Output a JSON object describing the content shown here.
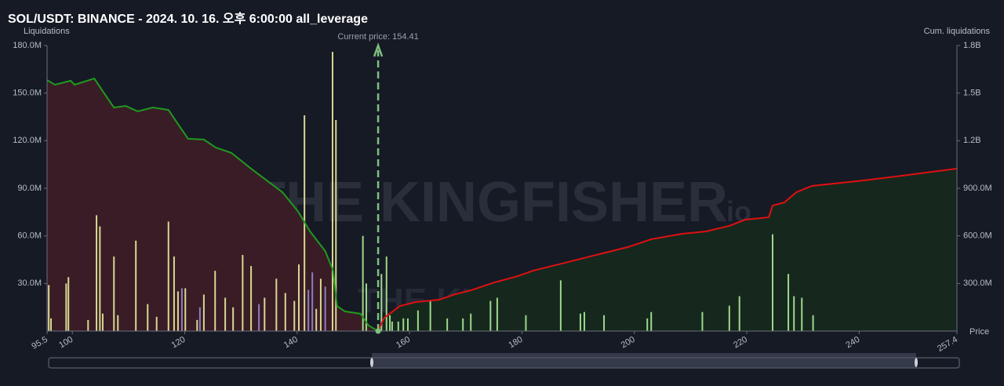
{
  "chart_data": {
    "type": "bar",
    "title": "SOL/USDT: BINANCE - 2024. 10. 16. 오후 6:00:00 all_leverage",
    "y_label": "Liquidations",
    "y2_label": "Cum. liquidations",
    "x_label": "Price",
    "annotation": "Current price: 154.41",
    "current_price": 154.41,
    "watermark": "THE KINGFISHER",
    "watermark_suffix": ".io",
    "grid": false,
    "xlim": [
      95.5,
      257.4
    ],
    "xticks": [
      95.5,
      100,
      120,
      140,
      160,
      180,
      200,
      220,
      240,
      257.4
    ],
    "ylim": [
      0,
      180000000
    ],
    "yticks": [
      {
        "value": 30000000,
        "label": "30.0M"
      },
      {
        "value": 60000000,
        "label": "60.0M"
      },
      {
        "value": 90000000,
        "label": "90.0M"
      },
      {
        "value": 120000000,
        "label": "120.0M"
      },
      {
        "value": 150000000,
        "label": "150.0M"
      },
      {
        "value": 180000000,
        "label": "180.0M"
      }
    ],
    "y2lim": [
      0,
      1800000000
    ],
    "y2ticks": [
      {
        "value": 300000000,
        "label": "300.0M"
      },
      {
        "value": 600000000,
        "label": "600.0M"
      },
      {
        "value": 900000000,
        "label": "900.0M"
      },
      {
        "value": 1200000000,
        "label": "1.2B"
      },
      {
        "value": 1500000000,
        "label": "1.5B"
      },
      {
        "value": 1800000000,
        "label": "1.8B"
      }
    ],
    "series": [
      {
        "type": "area",
        "axis": "y2",
        "color": "#1f9a1f",
        "area_color": "#3a1c26",
        "x": [
          95.5,
          96.9,
          99.7,
          100.4,
          103.9,
          105.3,
          107.4,
          109.5,
          111.6,
          114.3,
          117.1,
          118.5,
          120.6,
          123.4,
          125.5,
          128.3,
          131.8,
          134.6,
          137.4,
          140.2,
          142.3,
          145.0,
          146.4,
          147.1,
          148.5,
          151.3,
          152.7,
          154.4
        ],
        "values": [
          1582000000,
          1553000000,
          1578000000,
          1553000000,
          1592000000,
          1518000000,
          1409000000,
          1419000000,
          1385000000,
          1409000000,
          1394000000,
          1320000000,
          1212000000,
          1207000000,
          1157000000,
          1123000000,
          1024000000,
          949000000,
          875000000,
          752000000,
          628000000,
          504000000,
          381000000,
          158000000,
          124000000,
          109000000,
          35000000,
          0
        ]
      },
      {
        "type": "area",
        "axis": "y2",
        "color": "#e01010",
        "area_color": "#16281e",
        "x": [
          154.4,
          155.5,
          158.3,
          161.1,
          165.3,
          168.1,
          170.9,
          175.1,
          179.2,
          182.0,
          187.6,
          193.2,
          198.8,
          203.0,
          208.5,
          212.7,
          216.9,
          219.7,
          223.9,
          224.6,
          226.7,
          228.8,
          231.6,
          240.6,
          247.6,
          257.4
        ],
        "values": [
          0,
          84000000,
          158000000,
          183000000,
          198000000,
          232000000,
          257000000,
          307000000,
          346000000,
          381000000,
          430000000,
          480000000,
          529000000,
          579000000,
          613000000,
          628000000,
          663000000,
          702000000,
          717000000,
          791000000,
          811000000,
          875000000,
          915000000,
          949000000,
          979000000,
          1024000000
        ]
      },
      {
        "type": "bar",
        "color": "#d8d890",
        "x": [
          95.8,
          96.2,
          98.9,
          99.3,
          102.8,
          104.3,
          104.9,
          105.4,
          107.4,
          108.1,
          111.3,
          113.4,
          115.0,
          117.1,
          118.1,
          118.8,
          120.1,
          122.2,
          123.4,
          125.4,
          127.2,
          128.6,
          130.3,
          131.8,
          134.2,
          136.3,
          137.9,
          139.5,
          140.3,
          141.3,
          143.4,
          144.2,
          146.3,
          146.9
        ],
        "values": [
          29000000,
          8000000,
          30000000,
          34000000,
          7000000,
          73000000,
          66000000,
          11000000,
          47000000,
          10000000,
          57000000,
          17000000,
          9000000,
          69000000,
          47000000,
          25000000,
          27000000,
          7000000,
          23000000,
          38000000,
          21000000,
          15000000,
          48000000,
          41000000,
          21000000,
          33000000,
          24000000,
          19000000,
          42000000,
          136000000,
          14000000,
          33000000,
          176000000,
          133000000
        ]
      },
      {
        "type": "bar",
        "color": "#8a7fc0",
        "x": [
          119.5,
          122.7,
          133.2,
          142.0,
          142.7,
          145.0
        ],
        "values": [
          27000000,
          15000000,
          17000000,
          26000000,
          37000000,
          28000000
        ]
      },
      {
        "type": "bar",
        "color": "#9ed88a",
        "x": [
          151.7,
          152.3,
          155.0,
          155.9,
          156.5,
          156.9,
          158.0,
          158.9,
          159.7,
          161.5,
          163.7,
          166.7,
          169.5,
          170.9,
          174.4,
          175.6,
          180.7,
          186.9,
          190.4,
          191.1,
          194.6,
          202.3,
          203.0,
          212.1,
          216.9,
          218.7,
          224.6,
          227.4,
          228.4,
          229.8,
          231.8
        ],
        "values": [
          60000000,
          30000000,
          36000000,
          47000000,
          10000000,
          6000000,
          6000000,
          8000000,
          8000000,
          13000000,
          19000000,
          8000000,
          8000000,
          11000000,
          19000000,
          21000000,
          10000000,
          32000000,
          11000000,
          12000000,
          10000000,
          8000000,
          12000000,
          12000000,
          16000000,
          22000000,
          61000000,
          36000000,
          22000000,
          21000000,
          10000000
        ]
      }
    ]
  }
}
